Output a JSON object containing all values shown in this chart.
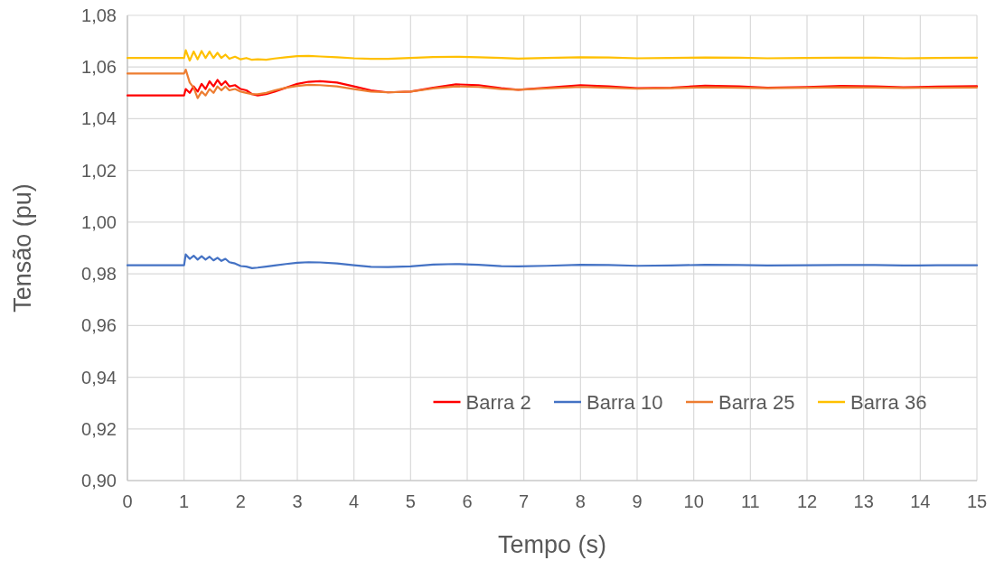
{
  "chart_data": {
    "type": "line",
    "xlabel": "Tempo (s)",
    "ylabel": "Tensão (pu)",
    "x": [
      0,
      1,
      1.03,
      1.1,
      1.17,
      1.24,
      1.31,
      1.38,
      1.45,
      1.52,
      1.59,
      1.66,
      1.73,
      1.8,
      1.9,
      2.0,
      2.1,
      2.2,
      2.3,
      2.45,
      2.6,
      2.8,
      3.0,
      3.2,
      3.4,
      3.7,
      4.0,
      4.3,
      4.6,
      5.0,
      5.4,
      5.8,
      6.2,
      6.6,
      6.9,
      7.4,
      8.0,
      8.5,
      9.0,
      9.6,
      10.2,
      10.8,
      11.3,
      12.0,
      12.6,
      13.2,
      13.7,
      14.3,
      15
    ],
    "series": [
      {
        "name": "Barra 2",
        "color": "#ff0000",
        "values": [
          1.049,
          1.049,
          1.0515,
          1.05,
          1.0525,
          1.0505,
          1.0535,
          1.0515,
          1.0545,
          1.0525,
          1.055,
          1.053,
          1.0545,
          1.0525,
          1.053,
          1.0515,
          1.051,
          1.0495,
          1.049,
          1.0495,
          1.0505,
          1.052,
          1.0535,
          1.0543,
          1.0545,
          1.054,
          1.0525,
          1.051,
          1.0502,
          1.0505,
          1.052,
          1.0533,
          1.053,
          1.0518,
          1.0512,
          1.052,
          1.053,
          1.0525,
          1.0518,
          1.052,
          1.0528,
          1.0525,
          1.052,
          1.0523,
          1.0527,
          1.0525,
          1.0522,
          1.0524,
          1.0526
        ]
      },
      {
        "name": "Barra 10",
        "color": "#4472c4",
        "values": [
          0.9833,
          0.9833,
          0.9875,
          0.9858,
          0.987,
          0.9855,
          0.9868,
          0.9855,
          0.9866,
          0.9852,
          0.9862,
          0.985,
          0.9858,
          0.9845,
          0.984,
          0.983,
          0.9828,
          0.9822,
          0.9824,
          0.9828,
          0.9832,
          0.9838,
          0.9843,
          0.9845,
          0.9844,
          0.984,
          0.9833,
          0.9827,
          0.9826,
          0.9829,
          0.9836,
          0.9838,
          0.9835,
          0.983,
          0.9829,
          0.9831,
          0.9835,
          0.9834,
          0.9831,
          0.9832,
          0.9835,
          0.9834,
          0.9832,
          0.9833,
          0.9834,
          0.9834,
          0.9832,
          0.9833,
          0.9833
        ]
      },
      {
        "name": "Barra 25",
        "color": "#ed7d31",
        "values": [
          1.0575,
          1.0575,
          1.059,
          1.054,
          1.052,
          1.048,
          1.0505,
          1.049,
          1.0515,
          1.05,
          1.0525,
          1.051,
          1.0525,
          1.051,
          1.0515,
          1.0505,
          1.05,
          1.0495,
          1.0495,
          1.05,
          1.051,
          1.052,
          1.0527,
          1.0531,
          1.053,
          1.0525,
          1.0515,
          1.0505,
          1.0502,
          1.0505,
          1.0517,
          1.0525,
          1.0523,
          1.0515,
          1.0512,
          1.0517,
          1.0523,
          1.052,
          1.0516,
          1.0518,
          1.0522,
          1.052,
          1.0518,
          1.052,
          1.0522,
          1.0521,
          1.0519,
          1.052,
          1.0521
        ]
      },
      {
        "name": "Barra 36",
        "color": "#ffc000",
        "values": [
          1.0635,
          1.0635,
          1.0665,
          1.0625,
          1.066,
          1.063,
          1.0662,
          1.0635,
          1.066,
          1.0635,
          1.0655,
          1.0635,
          1.0648,
          1.0632,
          1.064,
          1.063,
          1.0635,
          1.0628,
          1.063,
          1.0628,
          1.0633,
          1.0638,
          1.0642,
          1.0643,
          1.0641,
          1.0638,
          1.0634,
          1.0632,
          1.0632,
          1.0635,
          1.0639,
          1.064,
          1.0638,
          1.0635,
          1.0633,
          1.0635,
          1.0638,
          1.0637,
          1.0634,
          1.0635,
          1.0637,
          1.0636,
          1.0634,
          1.0635,
          1.0636,
          1.0636,
          1.0634,
          1.0635,
          1.0636
        ]
      }
    ],
    "xlim": [
      0,
      15
    ],
    "xticks": [
      0,
      1,
      2,
      3,
      4,
      5,
      6,
      7,
      8,
      9,
      10,
      11,
      12,
      13,
      14,
      15
    ],
    "ylim": [
      0.9,
      1.08
    ],
    "yticks": [
      {
        "value": 0.9,
        "label": "0,90"
      },
      {
        "value": 0.92,
        "label": "0,92"
      },
      {
        "value": 0.94,
        "label": "0,94"
      },
      {
        "value": 0.96,
        "label": "0,96"
      },
      {
        "value": 0.98,
        "label": "0,98"
      },
      {
        "value": 1.0,
        "label": "1,00"
      },
      {
        "value": 1.02,
        "label": "1,02"
      },
      {
        "value": 1.04,
        "label": "1,04"
      },
      {
        "value": 1.06,
        "label": "1,06"
      },
      {
        "value": 1.08,
        "label": "1,08"
      }
    ],
    "grid": true,
    "legend": "bottom right",
    "marker": "none",
    "line_style": "solid"
  }
}
